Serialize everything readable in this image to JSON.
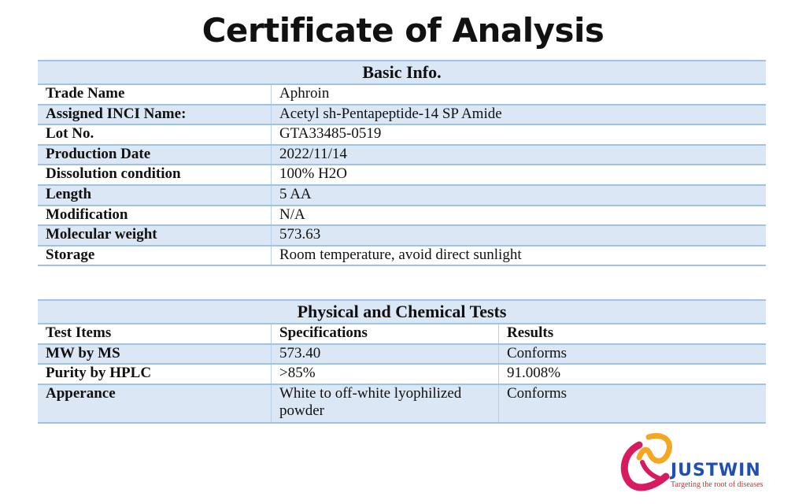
{
  "title": "Certificate of Analysis",
  "basic_info": {
    "heading": "Basic Info.",
    "rows": [
      {
        "label": "Trade Name",
        "value": "Aphroin"
      },
      {
        "label": "Assigned INCI Name:",
        "value": "Acetyl sh-Pentapeptide-14 SP Amide"
      },
      {
        "label": "Lot No.",
        "value": "GTA33485-0519"
      },
      {
        "label": "Production Date",
        "value": "2022/11/14"
      },
      {
        "label": "Dissolution condition",
        "value": "100% H2O"
      },
      {
        "label": "Length",
        "value": "5 AA"
      },
      {
        "label": "Modification",
        "value": "N/A"
      },
      {
        "label": "Molecular weight",
        "value": "573.63"
      },
      {
        "label": "Storage",
        "value": "Room temperature, avoid direct sunlight"
      }
    ]
  },
  "tests": {
    "heading": "Physical and Chemical Tests",
    "columns": [
      "Test Items",
      "Specifications",
      "Results"
    ],
    "rows": [
      {
        "item": "MW by MS",
        "spec": "573.40",
        "result": "Conforms"
      },
      {
        "item": "Purity by HPLC",
        "spec": ">85%",
        "result": "91.008%"
      },
      {
        "item": "Apperance",
        "spec": "White to off-white lyophilized powder",
        "result": "Conforms"
      }
    ]
  },
  "logo": {
    "name": "JUSTWIN",
    "tagline": "Targeting the root of diseases",
    "colors": {
      "primary": "#1f4fb3",
      "accent": "#d81b60",
      "secondary": "#f5a623"
    }
  }
}
